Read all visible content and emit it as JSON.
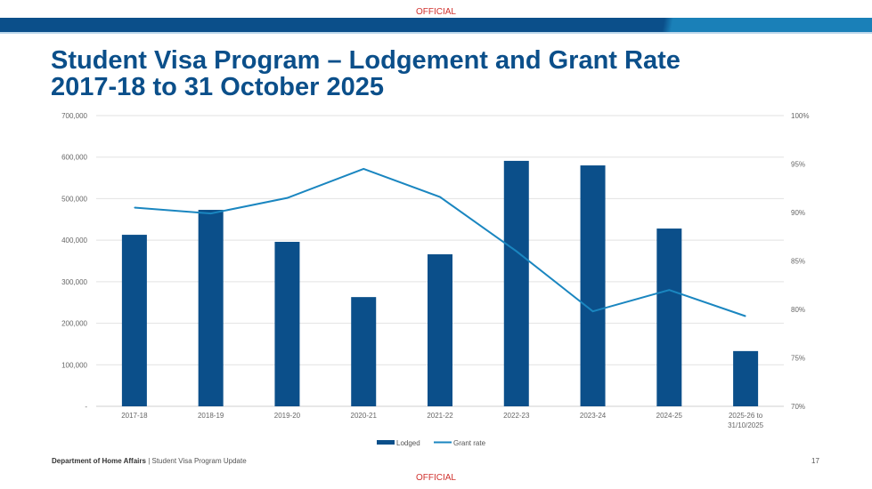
{
  "header": {
    "classification_top": "OFFICIAL",
    "title_line1": "Student Visa Program – Lodgement and Grant Rate",
    "title_line2": "2017-18 to 31 October 2025"
  },
  "footer": {
    "department": "Department of Home Affairs",
    "separator": "|",
    "presentation": "Student Visa Program Update",
    "page_number": "17",
    "classification_bottom": "OFFICIAL"
  },
  "colors": {
    "bar": "#0b4f8a",
    "line": "#1a86c0",
    "classification": "#d0312d"
  },
  "chart_data": {
    "type": "bar",
    "title": "Student Visa Program – Lodgement and Grant Rate 2017-18 to 31 October 2025",
    "categories": [
      "2017-18",
      "2018-19",
      "2019-20",
      "2020-21",
      "2021-22",
      "2022-23",
      "2023-24",
      "2024-25",
      "2025-26 to 31/10/2025"
    ],
    "series": [
      {
        "name": "Lodged",
        "type": "bar",
        "axis": "left",
        "values": [
          413000,
          473000,
          396000,
          263000,
          366000,
          591000,
          580000,
          428000,
          133000
        ]
      },
      {
        "name": "Grant rate",
        "type": "line",
        "axis": "right",
        "values": [
          90.5,
          89.9,
          91.5,
          94.5,
          91.6,
          86.0,
          79.8,
          82.0,
          79.3
        ]
      }
    ],
    "ylim": [
      0,
      700000
    ],
    "y2lim": [
      70,
      100
    ],
    "yticks": [
      "-",
      "100,000",
      "200,000",
      "300,000",
      "400,000",
      "500,000",
      "600,000",
      "700,000"
    ],
    "y2ticks": [
      "70%",
      "75%",
      "80%",
      "85%",
      "90%",
      "95%",
      "100%"
    ],
    "grid": true,
    "legend": "bottom"
  }
}
